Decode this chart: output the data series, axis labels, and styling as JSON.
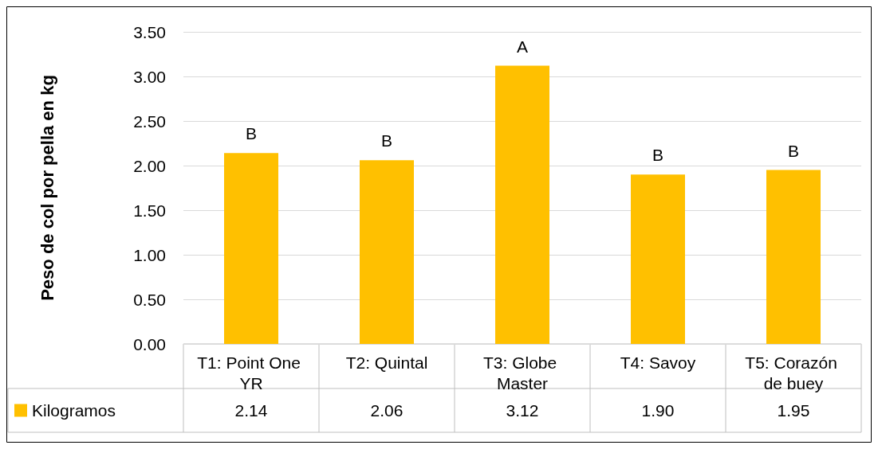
{
  "chart_data": {
    "type": "bar",
    "ylabel": "Peso de col por pella en kg",
    "categories": [
      "T1: Point One YR",
      "T2: Quintal",
      "T3: Globe Master",
      "T4: Savoy",
      "T5: Corazón de buey"
    ],
    "series": [
      {
        "name": "Kilogramos",
        "color": "#ffc000",
        "values": [
          2.14,
          2.06,
          3.12,
          1.9,
          1.95
        ]
      }
    ],
    "value_labels": [
      "2.14",
      "2.06",
      "3.12",
      "1.90",
      "1.95"
    ],
    "ylim": [
      0,
      3.5
    ],
    "yticks": [
      {
        "value": 0,
        "label": "0.00"
      },
      {
        "value": 0.5,
        "label": "0.50"
      },
      {
        "value": 1,
        "label": "1.00"
      },
      {
        "value": 1.5,
        "label": "1.50"
      },
      {
        "value": 2,
        "label": "2.00"
      },
      {
        "value": 2.5,
        "label": "2.50"
      },
      {
        "value": 3,
        "label": "3.00"
      },
      {
        "value": 3.5,
        "label": "3.50"
      }
    ],
    "grid": "y",
    "legend": "bottom",
    "annotations": [
      {
        "text": "B",
        "x": "T1: Point One YR",
        "y": 2.14
      },
      {
        "text": "B",
        "x": "T2: Quintal",
        "y": 2.06
      },
      {
        "text": "A",
        "x": "T3: Globe Master",
        "y": 3.12
      },
      {
        "text": "B",
        "x": "T4: Savoy",
        "y": 1.9
      },
      {
        "text": "B",
        "x": "T5: Corazón de buey",
        "y": 1.95
      }
    ]
  }
}
